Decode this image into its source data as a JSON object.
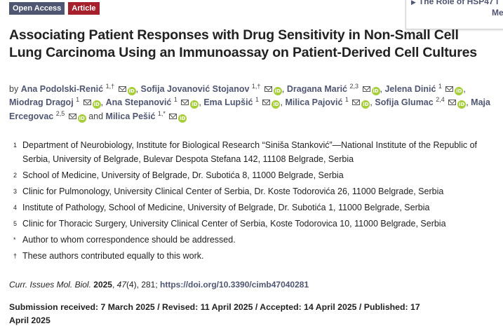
{
  "badges": {
    "open_access": "Open Access",
    "article": "Article"
  },
  "popup": {
    "line1": "The Role of HSP47 i",
    "line2": "Me"
  },
  "title": "Associating Patient Responses with Drug Sensitivity in Non-Small Cell Lung Carcinoma Using an Immunoassay on Patient-Derived Cell Cultures",
  "authors": {
    "by": "by",
    "list": [
      {
        "name": "Ana Podolski-Renić",
        "sup": "1,†"
      },
      {
        "name": "Sofija Jovanović Stojanov",
        "sup": "1,†"
      },
      {
        "name": "Dragana Marić",
        "sup": "2,3"
      },
      {
        "name": "Jelena Dinić",
        "sup": "1"
      },
      {
        "name": "Miodrag Dragoj",
        "sup": "1"
      },
      {
        "name": "Ana Stepanović",
        "sup": "1"
      },
      {
        "name": "Ema Lupšić",
        "sup": "1"
      },
      {
        "name": "Milica Pajović",
        "sup": "1"
      },
      {
        "name": "Sofija Glumac",
        "sup": "2,4"
      },
      {
        "name": "Maja Ercegovac",
        "sup": "2,5"
      },
      {
        "name": "Milica Pešić",
        "sup": "1,*"
      }
    ],
    "and": "and",
    "orcid_label": "iD"
  },
  "affiliations": [
    {
      "num": "1",
      "text": "Department of Neurobiology, Institute for Biological Research “Siniša Stanković”—National Institute of the Republic of Serbia, University of Belgrade, Bulevar Despota Stefana 142, 11108 Belgrade, Serbia"
    },
    {
      "num": "2",
      "text": "School of Medicine, University of Belgrade, Dr. Subotića 8, 11000 Belgrade, Serbia"
    },
    {
      "num": "3",
      "text": "Clinic for Pulmonology, University Clinical Center of Serbia, Dr. Koste Todorovića 26, 11000 Belgrade, Serbia"
    },
    {
      "num": "4",
      "text": "Institute of Pathology, School of Medicine, University of Belgrade, Dr. Subotića 1, 11000 Belgrade, Serbia"
    },
    {
      "num": "5",
      "text": "Clinic for Thoracic Surgery, University Clinical Center of Serbia, Koste Todorovica 10, 11000 Belgrade, Serbia"
    },
    {
      "num": "*",
      "text": "Author to whom correspondence should be addressed."
    },
    {
      "num": "†",
      "text": "These authors contributed equally to this work."
    }
  ],
  "citation": {
    "journal": "Curr. Issues Mol. Biol.",
    "year": "2025",
    "volume": "47",
    "rest": "(4), 281; ",
    "doi": "https://doi.org/10.3390/cimb47040281"
  },
  "dates": "Submission received: 7 March 2025 / Revised: 11 April 2025 / Accepted: 14 April 2025 / Published: 17 April 2025",
  "icons": {
    "mail": "mail-icon",
    "orcid": "orcid-icon",
    "popup_arrow": "triangle-right-icon"
  },
  "colors": {
    "link": "#4f5671",
    "badge_open": "#4f5671",
    "badge_article": "#a5202b",
    "orcid": "#a6ce39"
  }
}
